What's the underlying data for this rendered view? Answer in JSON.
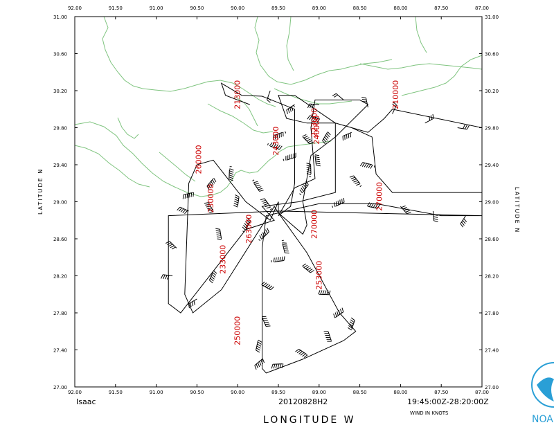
{
  "header": {
    "storm_name": "Isaac",
    "flight_id": "20120828H2",
    "time_range": "19:45:00Z-28:20:00Z",
    "wind_units": "WIND IN KNOTS"
  },
  "axes": {
    "x_title": "LONGITUDE    W",
    "y_title_left": "LATITUDE    N",
    "y_title_right": "LATITUDE    N",
    "x_ticks": [
      "92.00",
      "91.50",
      "91.00",
      "90.50",
      "90.00",
      "89.50",
      "89.00",
      "88.50",
      "88.00",
      "87.50",
      "87.00"
    ],
    "y_ticks": [
      "31.00",
      "30.60",
      "30.20",
      "29.80",
      "29.40",
      "29.00",
      "28.60",
      "28.20",
      "27.80",
      "27.40",
      "27.00"
    ]
  },
  "colors": {
    "coastline": "#7fc47f",
    "track": "#000000",
    "time_label": "#cc0000",
    "logo": "#2a9fd6"
  },
  "logo": {
    "text": "NOA",
    "icon": "noaa-logo-icon"
  },
  "chart_data": {
    "type": "map",
    "extent": {
      "lon": [
        92.0,
        87.0
      ],
      "lat": [
        27.0,
        31.0
      ]
    },
    "time_labels": [
      {
        "text": "213000",
        "lon": 89.97,
        "lat": 30.0
      },
      {
        "text": "210000",
        "lon": 88.03,
        "lat": 30.0
      },
      {
        "text": "223000",
        "lon": 89.03,
        "lat": 29.7
      },
      {
        "text": "243000",
        "lon": 89.5,
        "lat": 29.5
      },
      {
        "text": "240000",
        "lon": 89.0,
        "lat": 29.62
      },
      {
        "text": "260000",
        "lon": 90.45,
        "lat": 29.3
      },
      {
        "text": "230000",
        "lon": 90.3,
        "lat": 28.88
      },
      {
        "text": "270000",
        "lon": 88.23,
        "lat": 28.9
      },
      {
        "text": "263000",
        "lon": 89.83,
        "lat": 28.55
      },
      {
        "text": "270000",
        "lon": 89.03,
        "lat": 28.6
      },
      {
        "text": "233000",
        "lon": 90.15,
        "lat": 28.22
      },
      {
        "text": "253000",
        "lon": 88.97,
        "lat": 28.05
      },
      {
        "text": "250000",
        "lon": 89.97,
        "lat": 27.45
      }
    ],
    "track": [
      [
        89.85,
        30.05
      ],
      [
        90.15,
        30.15
      ],
      [
        90.2,
        30.28
      ],
      [
        89.95,
        30.15
      ],
      [
        89.7,
        30.14
      ],
      [
        89.3,
        30.0
      ],
      [
        89.3,
        29.65
      ],
      [
        89.3,
        29.2
      ],
      [
        89.35,
        28.95
      ],
      [
        89.5,
        28.85
      ],
      [
        89.3,
        29.15
      ],
      [
        89.05,
        29.25
      ],
      [
        89.1,
        29.8
      ],
      [
        89.05,
        30.1
      ],
      [
        88.5,
        30.1
      ],
      [
        88.4,
        30.05
      ],
      [
        88.8,
        29.7
      ],
      [
        89.1,
        29.5
      ],
      [
        89.2,
        29.0
      ],
      [
        89.15,
        28.75
      ],
      [
        89.2,
        28.65
      ],
      [
        89.5,
        28.88
      ],
      [
        89.5,
        29.0
      ],
      [
        89.6,
        28.8
      ],
      [
        89.9,
        29.0
      ],
      [
        90.3,
        29.45
      ],
      [
        90.5,
        29.4
      ],
      [
        90.6,
        29.2
      ],
      [
        90.65,
        28.0
      ],
      [
        90.55,
        27.8
      ],
      [
        90.2,
        28.05
      ],
      [
        89.55,
        28.95
      ],
      [
        89.5,
        28.88
      ],
      [
        89.15,
        28.45
      ],
      [
        88.75,
        27.8
      ],
      [
        88.55,
        27.6
      ],
      [
        88.7,
        27.5
      ],
      [
        89.2,
        27.3
      ],
      [
        89.65,
        27.15
      ],
      [
        89.7,
        27.2
      ],
      [
        89.7,
        28.5
      ],
      [
        89.65,
        28.85
      ],
      [
        89.0,
        28.98
      ],
      [
        88.3,
        28.98
      ],
      [
        87.5,
        28.85
      ],
      [
        87.0,
        28.85
      ],
      [
        89.5,
        28.9
      ],
      [
        90.85,
        28.85
      ],
      [
        90.85,
        27.9
      ],
      [
        90.7,
        27.8
      ],
      [
        89.9,
        28.7
      ],
      [
        89.55,
        28.8
      ],
      [
        89.7,
        28.95
      ],
      [
        89.25,
        29.0
      ],
      [
        88.8,
        29.1
      ],
      [
        88.8,
        29.85
      ],
      [
        89.3,
        30.15
      ],
      [
        89.5,
        30.15
      ],
      [
        89.4,
        29.9
      ],
      [
        89.15,
        29.85
      ],
      [
        88.8,
        29.85
      ],
      [
        88.4,
        29.75
      ],
      [
        88.2,
        29.9
      ],
      [
        88.1,
        30.0
      ],
      [
        87.0,
        29.8
      ],
      [
        87.0,
        29.1
      ],
      [
        88.1,
        29.1
      ],
      [
        88.3,
        29.3
      ],
      [
        88.35,
        29.7
      ],
      [
        88.6,
        29.8
      ]
    ],
    "wind_barbs": [
      [
        89.6,
        30.2,
        20
      ],
      [
        89.3,
        30.05,
        45
      ],
      [
        89.0,
        30.05,
        30
      ],
      [
        88.7,
        30.1,
        20
      ],
      [
        88.4,
        30.02,
        30
      ],
      [
        88.1,
        29.95,
        20
      ],
      [
        87.7,
        29.85,
        30
      ],
      [
        87.3,
        29.8,
        30
      ],
      [
        89.2,
        29.7,
        60
      ],
      [
        89.05,
        29.5,
        60
      ],
      [
        88.9,
        29.75,
        60
      ],
      [
        88.6,
        29.75,
        50
      ],
      [
        88.35,
        29.4,
        70
      ],
      [
        88.5,
        29.2,
        80
      ],
      [
        89.1,
        29.3,
        100
      ],
      [
        89.2,
        29.1,
        100
      ],
      [
        89.4,
        29.45,
        100
      ],
      [
        89.6,
        29.6,
        100
      ],
      [
        89.8,
        29.2,
        70
      ],
      [
        90.1,
        29.35,
        70
      ],
      [
        90.3,
        29.25,
        60
      ],
      [
        90.55,
        29.1,
        60
      ],
      [
        90.6,
        28.9,
        50
      ],
      [
        90.3,
        28.9,
        60
      ],
      [
        90.0,
        28.95,
        60
      ],
      [
        89.7,
        28.6,
        80
      ],
      [
        89.55,
        28.35,
        70
      ],
      [
        89.7,
        28.1,
        60
      ],
      [
        89.7,
        27.75,
        60
      ],
      [
        89.75,
        27.5,
        60
      ],
      [
        89.7,
        27.3,
        60
      ],
      [
        89.45,
        27.25,
        60
      ],
      [
        89.15,
        27.35,
        60
      ],
      [
        88.85,
        27.5,
        60
      ],
      [
        88.6,
        27.62,
        60
      ],
      [
        88.8,
        27.75,
        60
      ],
      [
        89.0,
        28.0,
        60
      ],
      [
        89.2,
        28.3,
        60
      ],
      [
        89.45,
        28.55,
        70
      ],
      [
        90.3,
        28.25,
        60
      ],
      [
        90.5,
        27.95,
        40
      ],
      [
        90.8,
        28.2,
        40
      ],
      [
        90.75,
        28.5,
        50
      ],
      [
        90.2,
        28.6,
        60
      ],
      [
        89.9,
        28.7,
        80
      ],
      [
        88.8,
        28.95,
        80
      ],
      [
        88.4,
        28.95,
        60
      ],
      [
        88.0,
        28.95,
        50
      ],
      [
        87.6,
        28.9,
        40
      ],
      [
        87.2,
        28.85,
        40
      ],
      [
        89.45,
        29.75,
        100
      ],
      [
        89.0,
        29.9,
        60
      ],
      [
        89.6,
        28.95,
        100
      ]
    ]
  }
}
